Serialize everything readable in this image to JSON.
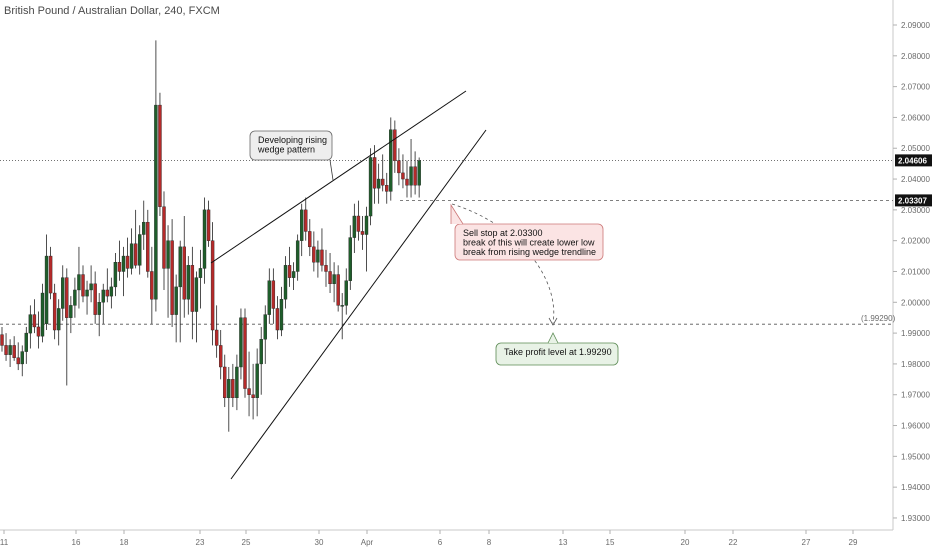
{
  "header": {
    "title": "British Pound / Australian Dollar, 240, FXCM"
  },
  "colors": {
    "bull": "#1f5e2b",
    "bear": "#b52a2a",
    "grid_dash": "#555555",
    "price_tag_bg": "#111111",
    "axis_text": "#6a6a6a"
  },
  "chart_data": {
    "type": "candlestick",
    "symbol": "British Pound / Australian Dollar",
    "timeframe": "240",
    "source": "FXCM",
    "x_tick_labels": [
      "11",
      "16",
      "18",
      "23",
      "25",
      "30",
      "Apr",
      "6",
      "8",
      "13",
      "15",
      "20",
      "22",
      "27",
      "29"
    ],
    "y_tick_labels": [
      "2.09000",
      "2.08000",
      "2.07000",
      "2.06000",
      "2.05000",
      "2.04000",
      "2.03000",
      "2.02000",
      "2.01000",
      "2.00000",
      "1.99000",
      "1.98000",
      "1.97000",
      "1.96000",
      "1.95000",
      "1.94000",
      "1.93000"
    ],
    "ylim": [
      1.929,
      2.095
    ],
    "current_price": {
      "value": 2.04606,
      "label": "2.04606"
    },
    "sell_stop_line": {
      "value": 2.03307,
      "label": "2.03307"
    },
    "take_profit_line": {
      "value": 1.9929,
      "label": "(1.99290)"
    },
    "annotations": [
      {
        "id": "wedge",
        "text": [
          "Developing rising",
          "wedge pattern"
        ]
      },
      {
        "id": "sell",
        "text": [
          "Sell stop at 2.03300",
          "break of this will create lower low",
          "break from rising wedge trendline"
        ]
      },
      {
        "id": "tp",
        "text": [
          "Take profit level at 1.99290"
        ]
      }
    ],
    "candles": [
      [
        1.9895,
        1.992,
        1.984,
        1.986
      ],
      [
        1.986,
        1.99,
        1.981,
        1.983
      ],
      [
        1.983,
        1.988,
        1.979,
        1.986
      ],
      [
        1.986,
        1.989,
        1.981,
        1.982
      ],
      [
        1.982,
        1.987,
        1.978,
        1.98
      ],
      [
        1.98,
        1.986,
        1.976,
        1.984
      ],
      [
        1.984,
        1.992,
        1.98,
        1.99
      ],
      [
        1.99,
        1.999,
        1.985,
        1.996
      ],
      [
        1.996,
        2.001,
        1.99,
        1.992
      ],
      [
        1.992,
        1.997,
        1.985,
        1.989
      ],
      [
        1.989,
        2.006,
        1.987,
        2.003
      ],
      [
        1.993,
        2.022,
        1.991,
        2.015
      ],
      [
        2.015,
        2.018,
        2.001,
        2.003
      ],
      [
        2.003,
        2.006,
        1.988,
        1.991
      ],
      [
        1.991,
        2.001,
        1.986,
        1.998
      ],
      [
        1.998,
        2.012,
        1.994,
        2.008
      ],
      [
        2.008,
        2.011,
        1.973,
        1.995
      ],
      [
        1.995,
        2.002,
        1.99,
        1.999
      ],
      [
        1.999,
        2.008,
        1.995,
        2.004
      ],
      [
        2.004,
        2.018,
        1.998,
        2.009
      ],
      [
        2.009,
        2.012,
        2.0,
        2.002
      ],
      [
        2.002,
        2.007,
        1.996,
        2.004
      ],
      [
        2.004,
        2.012,
        2.0,
        2.006
      ],
      [
        2.006,
        2.01,
        1.993,
        1.996
      ],
      [
        1.996,
        2.003,
        1.989,
        2.0
      ],
      [
        2.0,
        2.006,
        1.993,
        2.004
      ],
      [
        2.004,
        2.011,
        2.0,
        2.002
      ],
      [
        2.002,
        2.008,
        1.998,
        2.005
      ],
      [
        2.005,
        2.016,
        2.002,
        2.013
      ],
      [
        2.013,
        2.02,
        2.007,
        2.01
      ],
      [
        2.01,
        2.018,
        2.002,
        2.015
      ],
      [
        2.015,
        2.021,
        2.008,
        2.011
      ],
      [
        2.011,
        2.024,
        2.009,
        2.019
      ],
      [
        2.019,
        2.03,
        2.011,
        2.012
      ],
      [
        2.012,
        2.025,
        2.009,
        2.022
      ],
      [
        2.022,
        2.033,
        2.017,
        2.026
      ],
      [
        2.026,
        2.03,
        2.008,
        2.01
      ],
      [
        2.01,
        2.018,
        1.993,
        2.001
      ],
      [
        2.001,
        2.085,
        1.997,
        2.064
      ],
      [
        2.064,
        2.068,
        2.028,
        2.031
      ],
      [
        2.031,
        2.036,
        2.004,
        2.011
      ],
      [
        2.011,
        2.025,
        1.995,
        2.02
      ],
      [
        2.02,
        2.027,
        1.992,
        1.996
      ],
      [
        1.996,
        2.009,
        1.987,
        2.005
      ],
      [
        2.005,
        2.02,
        1.987,
        2.018
      ],
      [
        2.018,
        2.028,
        1.995,
        2.001
      ],
      [
        2.001,
        2.015,
        1.996,
        2.012
      ],
      [
        2.012,
        2.018,
        1.988,
        1.997
      ],
      [
        1.997,
        2.01,
        1.987,
        2.008
      ],
      [
        2.008,
        2.017,
        1.998,
        2.011
      ],
      [
        2.011,
        2.034,
        2.006,
        2.03
      ],
      [
        2.03,
        2.033,
        2.018,
        2.02
      ],
      [
        2.02,
        2.026,
        1.986,
        1.991
      ],
      [
        1.991,
        1.999,
        1.982,
        1.986
      ],
      [
        1.986,
        1.991,
        1.975,
        1.979
      ],
      [
        1.979,
        1.983,
        1.966,
        1.969
      ],
      [
        1.969,
        1.979,
        1.958,
        1.975
      ],
      [
        1.975,
        1.98,
        1.966,
        1.969
      ],
      [
        1.969,
        1.983,
        1.965,
        1.979
      ],
      [
        1.979,
        1.998,
        1.975,
        1.995
      ],
      [
        1.995,
        1.998,
        1.969,
        1.972
      ],
      [
        1.972,
        1.984,
        1.963,
        1.97
      ],
      [
        1.97,
        1.98,
        1.962,
        1.969
      ],
      [
        1.969,
        1.985,
        1.963,
        1.98
      ],
      [
        1.98,
        1.992,
        1.97,
        1.988
      ],
      [
        1.988,
        1.999,
        1.98,
        1.996
      ],
      [
        1.996,
        2.011,
        1.993,
        2.007
      ],
      [
        2.007,
        2.011,
        1.993,
        1.998
      ],
      [
        1.998,
        2.002,
        1.988,
        1.991
      ],
      [
        1.991,
        2.005,
        1.989,
        2.001
      ],
      [
        2.001,
        2.015,
        1.998,
        2.012
      ],
      [
        2.012,
        2.018,
        2.005,
        2.008
      ],
      [
        2.008,
        2.013,
        2.004,
        2.01
      ],
      [
        2.01,
        2.022,
        2.007,
        2.02
      ],
      [
        2.02,
        2.032,
        2.015,
        2.03
      ],
      [
        2.03,
        2.034,
        2.02,
        2.023
      ],
      [
        2.023,
        2.027,
        2.015,
        2.018
      ],
      [
        2.018,
        2.023,
        2.01,
        2.013
      ],
      [
        2.013,
        2.02,
        2.008,
        2.017
      ],
      [
        2.017,
        2.024,
        2.01,
        2.012
      ],
      [
        2.012,
        2.017,
        2.005,
        2.01
      ],
      [
        2.01,
        2.016,
        2.003,
        2.006
      ],
      [
        2.006,
        2.013,
        2.0,
        2.009
      ],
      [
        2.009,
        2.012,
        1.997,
        1.999
      ],
      [
        1.999,
        2.003,
        1.988,
        1.999
      ],
      [
        1.999,
        2.011,
        1.996,
        2.007
      ],
      [
        2.007,
        2.025,
        2.004,
        2.021
      ],
      [
        2.021,
        2.032,
        2.016,
        2.028
      ],
      [
        2.028,
        2.033,
        2.02,
        2.023
      ],
      [
        2.023,
        2.028,
        2.017,
        2.022
      ],
      [
        2.022,
        2.031,
        2.01,
        2.028
      ],
      [
        2.028,
        2.05,
        2.025,
        2.047
      ],
      [
        2.047,
        2.051,
        2.032,
        2.037
      ],
      [
        2.037,
        2.045,
        2.032,
        2.04
      ],
      [
        2.04,
        2.048,
        2.036,
        2.038
      ],
      [
        2.038,
        2.042,
        2.032,
        2.036
      ],
      [
        2.036,
        2.06,
        2.033,
        2.056
      ],
      [
        2.056,
        2.059,
        2.042,
        2.046
      ],
      [
        2.046,
        2.05,
        2.038,
        2.042
      ],
      [
        2.042,
        2.048,
        2.037,
        2.04
      ],
      [
        2.04,
        2.046,
        2.034,
        2.038
      ],
      [
        2.038,
        2.053,
        2.034,
        2.044
      ],
      [
        2.044,
        2.049,
        2.035,
        2.038
      ],
      [
        2.038,
        2.047,
        2.034,
        2.046
      ]
    ]
  }
}
